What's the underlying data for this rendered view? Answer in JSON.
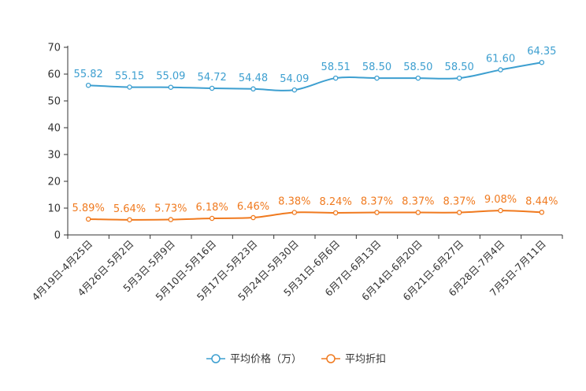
{
  "chart_data": {
    "type": "line",
    "title": "",
    "xlabel": "",
    "ylabel": "",
    "ylim": [
      0,
      70
    ],
    "yticks": [
      0,
      10,
      20,
      30,
      40,
      50,
      60,
      70
    ],
    "ytick_labels": [
      "0",
      "10",
      "20",
      "30",
      "40",
      "50",
      "60",
      "70"
    ],
    "grid": false,
    "legend_position": "bottom-center",
    "categories": [
      "4月19日-4月25日",
      "4月26日-5月2日",
      "5月3日-5月9日",
      "5月10日-5月16日",
      "5月17日-5月23日",
      "5月24日-5月30日",
      "5月31日-6月6日",
      "6月7日-6月13日",
      "6月14日-6月20日",
      "6月21日-6月27日",
      "6月28日-7月4日",
      "7月5日-7月11日"
    ],
    "series": [
      {
        "name": "平均价格（万）",
        "color": "#3d9fd0",
        "values": [
          55.82,
          55.15,
          55.09,
          54.72,
          54.48,
          54.09,
          58.51,
          58.5,
          58.5,
          58.5,
          61.6,
          64.35
        ],
        "labels": [
          "55.82",
          "55.15",
          "55.09",
          "54.72",
          "54.48",
          "54.09",
          "58.51",
          "58.50",
          "58.50",
          "58.50",
          "61.60",
          "64.35"
        ]
      },
      {
        "name": "平均折扣",
        "color": "#f07a1f",
        "values": [
          5.89,
          5.64,
          5.73,
          6.18,
          6.46,
          8.38,
          8.24,
          8.37,
          8.37,
          8.37,
          9.08,
          8.44
        ],
        "labels": [
          "5.89%",
          "5.64%",
          "5.73%",
          "6.18%",
          "6.46%",
          "8.38%",
          "8.24%",
          "8.37%",
          "8.37%",
          "8.37%",
          "9.08%",
          "8.44%"
        ]
      }
    ]
  }
}
